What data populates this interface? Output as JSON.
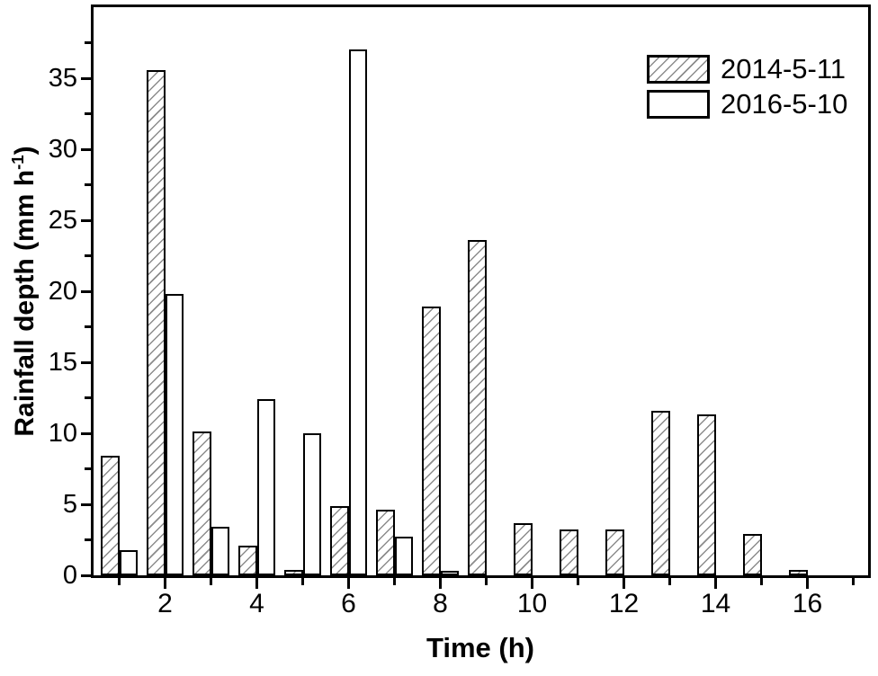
{
  "chart_data": {
    "type": "bar",
    "title": "",
    "xlabel": "Time (h)",
    "ylabel": "Rainfall depth (mm h-1)",
    "ylabel_parts": {
      "main": "Rainfall depth (mm h",
      "sup": "-1",
      "close": ")"
    },
    "categories": [
      1,
      2,
      3,
      4,
      5,
      6,
      7,
      8,
      9,
      10,
      11,
      12,
      13,
      14,
      15,
      16
    ],
    "series": [
      {
        "name": "2014-5-11",
        "style": "hatched",
        "values": [
          8.4,
          35.6,
          10.1,
          2.1,
          0.4,
          4.9,
          4.6,
          18.9,
          23.6,
          3.7,
          3.2,
          3.2,
          11.6,
          11.3,
          2.9,
          0.4
        ]
      },
      {
        "name": "2016-5-10",
        "style": "plain",
        "values": [
          1.8,
          19.8,
          3.4,
          12.4,
          10.0,
          37.0,
          2.7,
          0.3,
          0,
          0,
          0,
          0,
          0,
          0,
          0,
          0
        ]
      }
    ],
    "x_major_ticks": [
      2,
      4,
      6,
      8,
      10,
      12,
      14,
      16
    ],
    "x_minor_ticks": [
      1,
      3,
      5,
      7,
      9,
      11,
      13,
      15,
      17
    ],
    "y_major_ticks": [
      0,
      5,
      10,
      15,
      20,
      25,
      30,
      35
    ],
    "y_minor_ticks": [
      2.5,
      7.5,
      12.5,
      17.5,
      22.5,
      27.5,
      32.5,
      37.5
    ],
    "xlim": [
      0.45,
      17.3
    ],
    "ylim": [
      0,
      40
    ],
    "grid": false,
    "legend_position": "top-right",
    "colors": {
      "background": "#ffffff",
      "bar_fill": "#ffffff",
      "bar_border": "#000000",
      "hatch_line": "#8c8c8c",
      "axis": "#000000",
      "text": "#000000"
    }
  },
  "legend": {
    "items": [
      {
        "label": "2014-5-11",
        "swatch": "hatched"
      },
      {
        "label": "2016-5-10",
        "swatch": "plain"
      }
    ]
  }
}
